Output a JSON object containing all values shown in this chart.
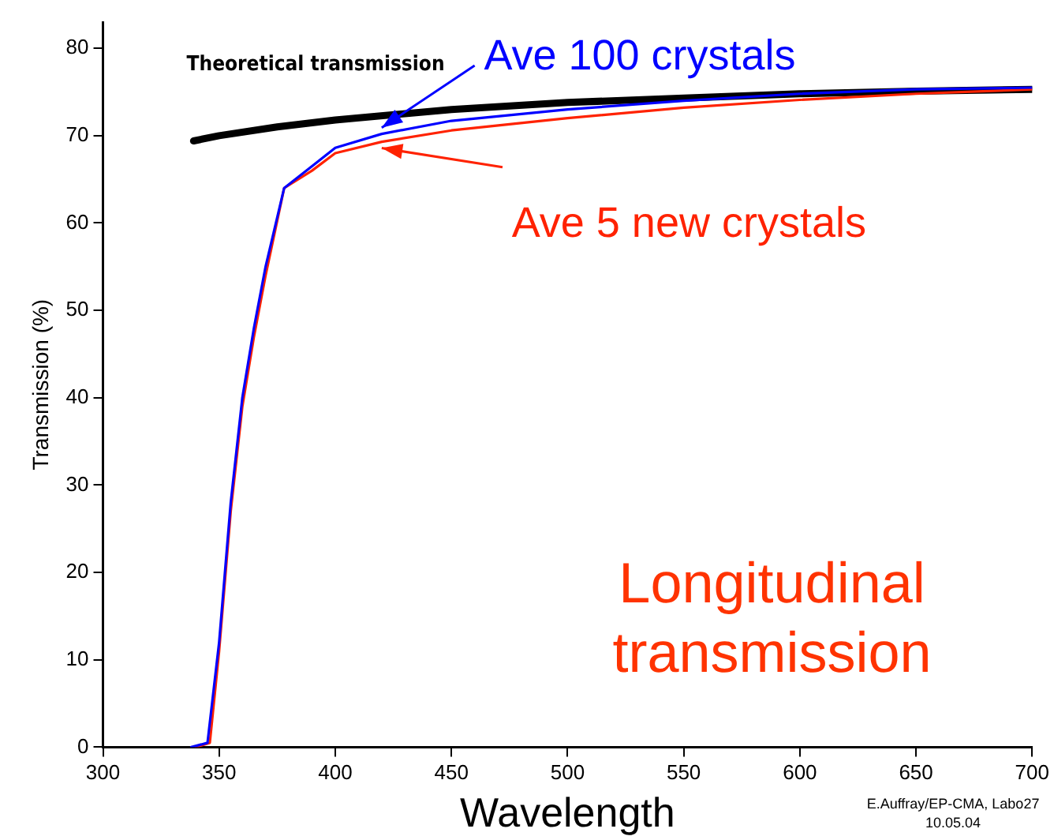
{
  "chart_data": {
    "type": "line",
    "xlabel": "Wavelength",
    "ylabel": "Transmission (%)",
    "xlim": [
      300,
      700
    ],
    "ylim": [
      0,
      83
    ],
    "xticks": [
      300,
      350,
      400,
      450,
      500,
      550,
      600,
      650,
      700
    ],
    "yticks": [
      0,
      10,
      20,
      30,
      40,
      50,
      60,
      70,
      80
    ],
    "grid": false,
    "legend": false,
    "marker": "none",
    "line_style": "solid",
    "series": [
      {
        "name": "Theoretical transmission",
        "color": "#000000",
        "x": [
          339,
          350,
          375,
          400,
          450,
          500,
          550,
          600,
          650,
          700
        ],
        "values": [
          69.4,
          70.0,
          71.0,
          71.8,
          73.0,
          73.8,
          74.3,
          74.8,
          75.1,
          75.3
        ]
      },
      {
        "name": "Ave 100 crystals",
        "color": "#0000ff",
        "x": [
          338,
          345,
          350,
          355,
          360,
          365,
          370,
          378,
          390,
          400,
          420,
          450,
          500,
          550,
          600,
          650,
          700
        ],
        "values": [
          0,
          0.5,
          12,
          28,
          40,
          48,
          55,
          64,
          66.5,
          68.6,
          70.2,
          71.7,
          73.0,
          74.0,
          74.8,
          75.3,
          75.5
        ]
      },
      {
        "name": "Ave 5 new crystals",
        "color": "#ff2200",
        "x": [
          340,
          346,
          350,
          355,
          360,
          365,
          370,
          378,
          390,
          400,
          420,
          450,
          500,
          550,
          600,
          650,
          700
        ],
        "values": [
          0,
          0.5,
          11,
          27,
          39,
          47,
          54,
          64,
          66,
          68.0,
          69.3,
          70.6,
          72.0,
          73.2,
          74.1,
          74.8,
          75.3
        ]
      }
    ],
    "annotations": [
      "Longitudinal transmission",
      "E.Auffray/EP-CMA, Labo27 10.05.04"
    ]
  }
}
